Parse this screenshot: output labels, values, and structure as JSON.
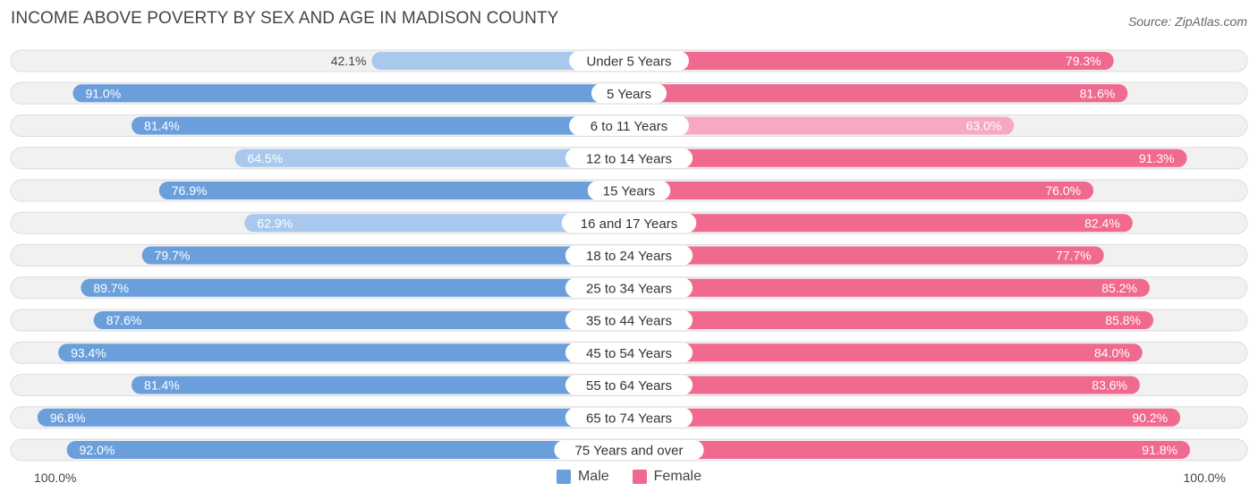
{
  "title": "INCOME ABOVE POVERTY BY SEX AND AGE IN MADISON COUNTY",
  "source": "Source: ZipAtlas.com",
  "colors": {
    "male_strong": "#6a9fdc",
    "male_light": "#a9c8ee",
    "female_strong": "#f0698f",
    "female_light": "#f7a9c1",
    "track": "#f1f1f1",
    "track_border": "#dddddd"
  },
  "chart_data": {
    "type": "bar",
    "orientation": "horizontal-diverging",
    "title": "INCOME ABOVE POVERTY BY SEX AND AGE IN MADISON COUNTY",
    "xlim": [
      0,
      100
    ],
    "axis_left_label": "100.0%",
    "axis_right_label": "100.0%",
    "legend": [
      "Male",
      "Female"
    ],
    "categories": [
      "Under 5 Years",
      "5 Years",
      "6 to 11 Years",
      "12 to 14 Years",
      "15 Years",
      "16 and 17 Years",
      "18 to 24 Years",
      "25 to 34 Years",
      "35 to 44 Years",
      "45 to 54 Years",
      "55 to 64 Years",
      "65 to 74 Years",
      "75 Years and over"
    ],
    "series": [
      {
        "name": "Male",
        "values": [
          42.1,
          91.0,
          81.4,
          64.5,
          76.9,
          62.9,
          79.7,
          89.7,
          87.6,
          93.4,
          81.4,
          96.8,
          92.0
        ],
        "labels": [
          "42.1%",
          "91.0%",
          "81.4%",
          "64.5%",
          "76.9%",
          "62.9%",
          "79.7%",
          "89.7%",
          "87.6%",
          "93.4%",
          "81.4%",
          "96.8%",
          "92.0%"
        ]
      },
      {
        "name": "Female",
        "values": [
          79.3,
          81.6,
          63.0,
          91.3,
          76.0,
          82.4,
          77.7,
          85.2,
          85.8,
          84.0,
          83.6,
          90.2,
          91.8
        ],
        "labels": [
          "79.3%",
          "81.6%",
          "63.0%",
          "91.3%",
          "76.0%",
          "82.4%",
          "77.7%",
          "85.2%",
          "85.8%",
          "84.0%",
          "83.6%",
          "90.2%",
          "91.8%"
        ]
      }
    ]
  }
}
